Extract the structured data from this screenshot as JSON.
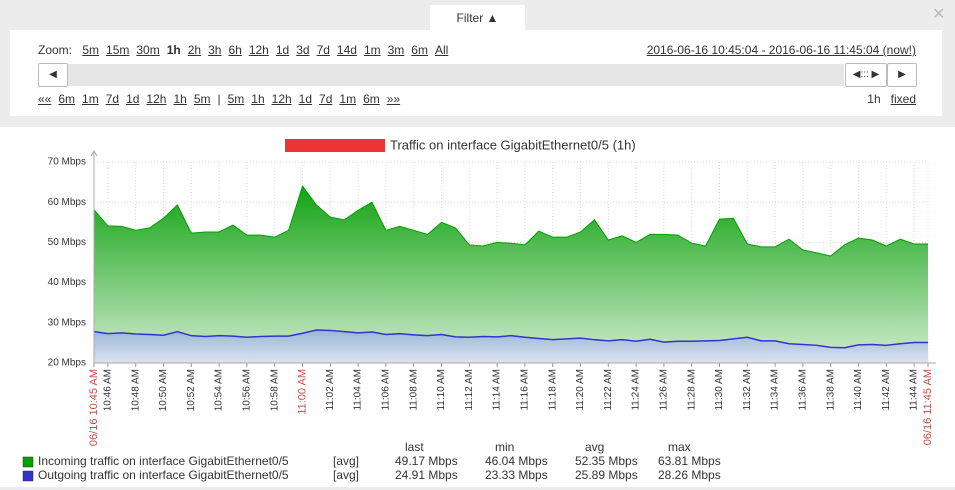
{
  "filter": {
    "tab": "Filter ▲",
    "zoom_label": "Zoom:",
    "zoom_links": [
      "5m",
      "15m",
      "30m",
      "1h",
      "2h",
      "3h",
      "6h",
      "12h",
      "1d",
      "3d",
      "7d",
      "14d",
      "1m",
      "3m",
      "6m",
      "All"
    ],
    "zoom_active": "1h",
    "period": "2016-06-16 10:45:04 - 2016-06-16 11:45:04 (now!)",
    "back_mark": "««",
    "back_links": [
      "6m",
      "1m",
      "7d",
      "1d",
      "12h",
      "1h",
      "5m"
    ],
    "separator": "|",
    "forward_links": [
      "5m",
      "1h",
      "12h",
      "1d",
      "7d",
      "1m",
      "6m"
    ],
    "forward_mark": "»»",
    "period_length": "1h",
    "period_mode": "fixed"
  },
  "chart_data": {
    "type": "area",
    "title": "Traffic on interface GigabitEthernet0/5 (1h)",
    "x": [
      "10:45 AM",
      "10:46 AM",
      "10:47 AM",
      "10:48 AM",
      "10:49 AM",
      "10:50 AM",
      "10:51 AM",
      "10:52 AM",
      "10:53 AM",
      "10:54 AM",
      "10:55 AM",
      "10:56 AM",
      "10:57 AM",
      "10:58 AM",
      "10:59 AM",
      "11:00 AM",
      "11:01 AM",
      "11:02 AM",
      "11:03 AM",
      "11:04 AM",
      "11:05 AM",
      "11:06 AM",
      "11:07 AM",
      "11:08 AM",
      "11:09 AM",
      "11:10 AM",
      "11:11 AM",
      "11:12 AM",
      "11:13 AM",
      "11:14 AM",
      "11:15 AM",
      "11:16 AM",
      "11:17 AM",
      "11:18 AM",
      "11:19 AM",
      "11:20 AM",
      "11:21 AM",
      "11:22 AM",
      "11:23 AM",
      "11:24 AM",
      "11:25 AM",
      "11:26 AM",
      "11:27 AM",
      "11:28 AM",
      "11:29 AM",
      "11:30 AM",
      "11:31 AM",
      "11:32 AM",
      "11:33 AM",
      "11:34 AM",
      "11:35 AM",
      "11:36 AM",
      "11:37 AM",
      "11:38 AM",
      "11:39 AM",
      "11:40 AM",
      "11:41 AM",
      "11:42 AM",
      "11:43 AM",
      "11:44 AM",
      "11:45 AM"
    ],
    "xticks": [
      {
        "value": "10:45 AM",
        "label": "06/16 10:45 AM"
      },
      "10:46 AM",
      "10:48 AM",
      "10:50 AM",
      "10:52 AM",
      "10:54 AM",
      "10:56 AM",
      "10:58 AM",
      "11:00 AM",
      "11:02 AM",
      "11:04 AM",
      "11:06 AM",
      "11:08 AM",
      "11:10 AM",
      "11:12 AM",
      "11:14 AM",
      "11:16 AM",
      "11:18 AM",
      "11:20 AM",
      "11:22 AM",
      "11:24 AM",
      "11:26 AM",
      "11:28 AM",
      "11:30 AM",
      "11:32 AM",
      "11:34 AM",
      "11:36 AM",
      "11:38 AM",
      "11:40 AM",
      "11:42 AM",
      "11:44 AM",
      {
        "value": "11:45 AM",
        "label": "06/16 11:45 AM"
      }
    ],
    "major_tick_color": "#c0504d",
    "ylim": [
      20,
      70
    ],
    "yticks": [
      {
        "value": 20,
        "label": "20 Mbps"
      },
      {
        "value": 30,
        "label": "30 Mbps"
      },
      {
        "value": 40,
        "label": "40 Mbps"
      },
      {
        "value": 50,
        "label": "50 Mbps"
      },
      {
        "value": 60,
        "label": "60 Mbps"
      },
      {
        "value": 70,
        "label": "70 Mbps"
      }
    ],
    "grid": true,
    "stat_headers": [
      "last",
      "min",
      "avg",
      "max"
    ],
    "series": [
      {
        "name": "Incoming traffic on interface GigabitEthernet0/5",
        "color": "#00a000",
        "func": "[avg]",
        "stats": [
          "49.17 Mbps",
          "46.04 Mbps",
          "52.35 Mbps",
          "63.81 Mbps"
        ],
        "values": [
          58.1,
          54.1,
          54,
          53,
          53.6,
          56,
          59.3,
          52.3,
          52.6,
          52.6,
          54.3,
          51.8,
          51.8,
          51.3,
          53,
          64,
          59.3,
          56.3,
          55.6,
          58,
          60,
          53,
          54,
          53,
          52,
          55,
          53.6,
          49.4,
          49.1,
          50,
          49.8,
          49.4,
          52.8,
          51.3,
          51.3,
          52.6,
          55.6,
          50.6,
          51.6,
          50,
          52,
          52,
          51.8,
          49.8,
          49.1,
          55.8,
          56,
          49.6,
          48.9,
          48.9,
          50.8,
          48.1,
          47.4,
          46.6,
          49.4,
          51.1,
          50.6,
          49.1,
          50.8,
          49.6,
          49.6
        ]
      },
      {
        "name": "Outgoing traffic on interface GigabitEthernet0/5",
        "color": "#3333cc",
        "func": "[avg]",
        "stats": [
          "24.91 Mbps",
          "23.33 Mbps",
          "25.89 Mbps",
          "28.26 Mbps"
        ],
        "values": [
          27.8,
          27.3,
          27.5,
          27.2,
          27.1,
          26.9,
          27.8,
          26.8,
          26.6,
          26.8,
          26.7,
          26.4,
          26.6,
          26.7,
          26.7,
          27.4,
          28.2,
          28.1,
          27.8,
          27.5,
          27.7,
          27.1,
          27.3,
          27.0,
          26.8,
          27.1,
          26.5,
          26.4,
          26.6,
          26.5,
          26.8,
          26.4,
          26.1,
          25.8,
          26.0,
          26.2,
          25.8,
          25.5,
          25.8,
          25.4,
          25.9,
          25.2,
          25.4,
          25.4,
          25.5,
          25.6,
          26.0,
          26.4,
          25.5,
          25.5,
          24.8,
          24.6,
          24.4,
          23.9,
          23.8,
          24.5,
          24.6,
          24.4,
          24.8,
          25.1,
          25.1
        ]
      }
    ]
  }
}
